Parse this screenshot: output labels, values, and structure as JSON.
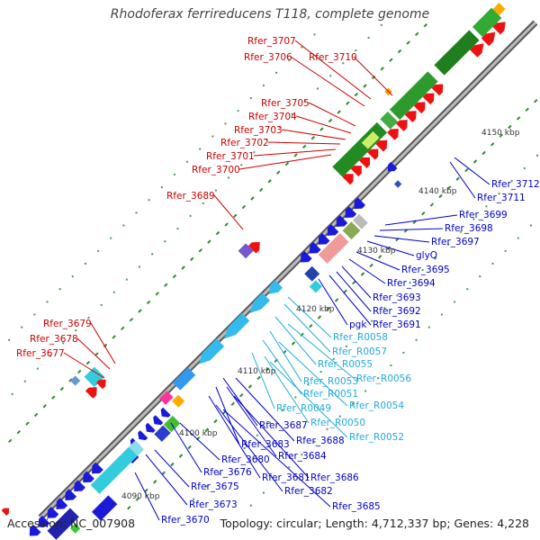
{
  "header": {
    "title": "Rhodoferax ferrireducens T118, complete genome"
  },
  "footer": {
    "accession": "Accession: NC_007908",
    "stats": "Topology: circular; Length: 4,712,337 bp; Genes: 4,228"
  },
  "colors": {
    "track": "#8c8c8c",
    "tick_minor": "#2f8a2f",
    "tick_major": "#1e6b1e",
    "gc_dots": "#4a9e4a",
    "label_red": "#cc0000",
    "label_blue": "#0000cc",
    "label_cyan": "#22aadd",
    "label_dark": "#333333"
  },
  "map": {
    "scale_labels": [
      "4090 kbp",
      "4100 kbp",
      "4110 kbp",
      "4120 kbp",
      "4130 kbp",
      "4140 kbp",
      "4150 kbp"
    ],
    "labels_red": [
      "Rfer_3707",
      "Rfer_3706",
      "Rfer_3710",
      "Rfer_3705",
      "Rfer_3704",
      "Rfer_3703",
      "Rfer_3702",
      "Rfer_3701",
      "Rfer_3700",
      "Rfer_3689",
      "Rfer_3679",
      "Rfer_3678",
      "Rfer_3677"
    ],
    "labels_blue": [
      "Rfer_3712",
      "Rfer_3711",
      "Rfer_3699",
      "Rfer_3698",
      "Rfer_3697",
      "glyQ",
      "Rfer_3695",
      "Rfer_3694",
      "Rfer_3693",
      "Rfer_3692",
      "Rfer_3691",
      "pgk",
      "Rfer_3687",
      "Rfer_3688",
      "Rfer_3683",
      "Rfer_3684",
      "Rfer_3680",
      "Rfer_3676",
      "Rfer_3681",
      "Rfer_3686",
      "Rfer_3682",
      "Rfer_3675",
      "Rfer_3673",
      "Rfer_3685",
      "Rfer_3670"
    ],
    "labels_cyan": [
      "Rfer_R0058",
      "Rfer_R0057",
      "Rfer_R0055",
      "Rfer_R0056",
      "Rfer_R0053",
      "Rfer_R0051",
      "Rfer_R0054",
      "Rfer_R0049",
      "Rfer_R0050",
      "Rfer_R0052"
    ]
  }
}
